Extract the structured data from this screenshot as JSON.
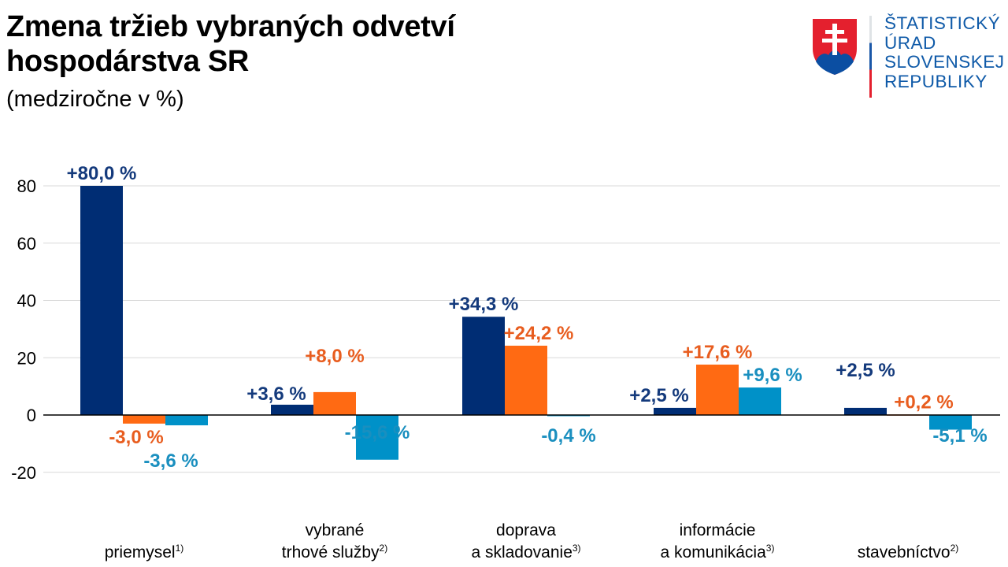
{
  "header": {
    "title_line1": "Zmena tržieb vybraných odvetví",
    "title_line2": "hospodárstva SR",
    "subtitle": "(medziročne v %)"
  },
  "logo": {
    "lines": [
      "ŠTATISTICKÝ",
      "ÚRAD",
      "SLOVENSKEJ",
      "REPUBLIKY"
    ]
  },
  "chart_data": {
    "type": "bar",
    "title": "Zmena tržieb vybraných odvetví hospodárstva SR",
    "subtitle": "(medziročne v %)",
    "categories": [
      {
        "lines": [
          "priemysel"
        ],
        "note": "1)"
      },
      {
        "lines": [
          "vybrané",
          "trhové služby"
        ],
        "note": "2)"
      },
      {
        "lines": [
          "doprava",
          "a skladovanie"
        ],
        "note": "3)"
      },
      {
        "lines": [
          "informácie",
          "a komunikácia"
        ],
        "note": "3)"
      },
      {
        "lines": [
          "stavebníctvo"
        ],
        "note": "2)"
      }
    ],
    "series": [
      {
        "values": [
          80.0,
          3.6,
          34.3,
          2.5,
          2.5
        ],
        "labels": [
          "+80,0 %",
          "+3,6 %",
          "+34,3 %",
          "+2,5 %",
          "+2,5 %"
        ],
        "color": "#002d74",
        "label_color": "#143a7c"
      },
      {
        "values": [
          -3.0,
          8.0,
          24.2,
          17.6,
          0.2
        ],
        "labels": [
          "-3,0 %",
          "+8,0 %",
          "+24,2 %",
          "+17,6 %",
          "+0,2 %"
        ],
        "color": "#ff6a13",
        "label_color": "#e85d1f"
      },
      {
        "values": [
          -3.6,
          -15.6,
          -0.4,
          9.6,
          -5.1
        ],
        "labels": [
          "-3,6 %",
          "-15,6 %",
          "-0,4 %",
          "+9,6 %",
          "-5,1 %"
        ],
        "color": "#0091c8",
        "label_color": "#1a8fbf"
      }
    ],
    "yticks": [
      "80",
      "60",
      "40",
      "20",
      "0",
      "-20"
    ],
    "ylim": [
      -20,
      80
    ],
    "grid": true,
    "legend": "none"
  }
}
